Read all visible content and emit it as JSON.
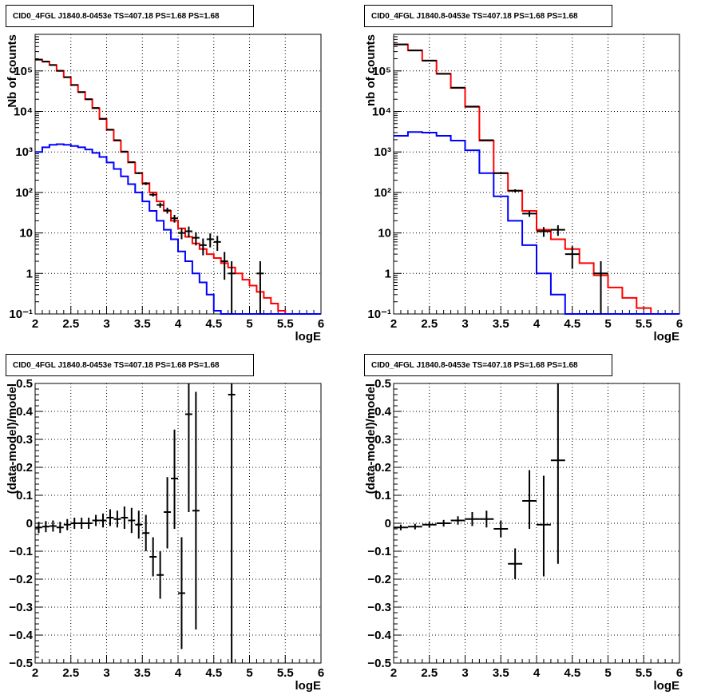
{
  "chart_data": [
    {
      "id": "p1",
      "type": "step",
      "title": "CID0_4FGL J1840.8-0453e TS=407.18 PS=1.68 PS=1.68",
      "xlabel": "logE",
      "ylabel": "Nb of counts",
      "xlim": [
        2,
        6
      ],
      "ylim": [
        0.1,
        800000
      ],
      "yscale": "log",
      "grid": true,
      "xticks": [
        "2",
        "2.5",
        "3",
        "3.5",
        "4",
        "4.5",
        "5",
        "5.5",
        "6"
      ],
      "yticks": [
        "10⁻¹",
        "1",
        "10",
        "10²",
        "10³",
        "10⁴",
        "10⁵"
      ],
      "series": [
        {
          "color": "#ff0000",
          "edges": [
            2.0,
            2.1,
            2.2,
            2.3,
            2.4,
            2.5,
            2.6,
            2.7,
            2.8,
            2.9,
            3.0,
            3.1,
            3.2,
            3.3,
            3.4,
            3.5,
            3.6,
            3.7,
            3.8,
            3.9,
            4.0,
            4.1,
            4.2,
            4.3,
            4.4,
            4.5,
            4.6,
            4.7,
            4.8,
            4.9,
            5.0,
            5.1,
            5.2,
            5.3,
            5.4,
            5.5,
            5.6,
            5.7,
            5.8,
            5.9,
            6.0
          ],
          "values": [
            190000,
            170000,
            140000,
            100000,
            70000,
            45000,
            30000,
            20000,
            12000,
            6500,
            3500,
            1900,
            1000,
            550,
            300,
            170,
            100,
            60,
            35,
            20,
            13,
            8,
            5.5,
            4,
            3,
            2.4,
            1.8,
            1.4,
            1.0,
            0.7,
            0.5,
            0.35,
            0.25,
            0.18,
            0.12,
            0.1,
            0.1,
            0.1,
            0.1,
            0.1
          ]
        },
        {
          "color": "#0000ff",
          "edges": [
            2.0,
            2.1,
            2.2,
            2.3,
            2.4,
            2.5,
            2.6,
            2.7,
            2.8,
            2.9,
            3.0,
            3.1,
            3.2,
            3.3,
            3.4,
            3.5,
            3.6,
            3.7,
            3.8,
            3.9,
            4.0,
            4.1,
            4.2,
            4.3,
            4.4,
            4.5,
            4.6,
            4.7,
            4.8,
            4.9,
            5.0,
            5.1,
            5.2,
            5.3,
            5.4,
            5.5,
            5.6,
            5.7,
            5.8,
            5.9,
            6.0
          ],
          "values": [
            1000,
            1300,
            1500,
            1550,
            1500,
            1400,
            1300,
            1150,
            950,
            750,
            550,
            380,
            250,
            160,
            100,
            60,
            35,
            20,
            12,
            7,
            3.5,
            2,
            1,
            0.6,
            0.3,
            0.12,
            0.1,
            0.1,
            0.1,
            0.1,
            0.1,
            0.1,
            0.1,
            0.1,
            0.1,
            0.1,
            0.1,
            0.1,
            0.1,
            0.1
          ]
        }
      ],
      "points": [
        {
          "x": 2.05,
          "y": 190000,
          "ylo": 189000,
          "yhi": 191000,
          "xerr": 0.05
        },
        {
          "x": 2.15,
          "y": 170000,
          "ylo": 169000,
          "yhi": 171000,
          "xerr": 0.05
        },
        {
          "x": 2.25,
          "y": 140000,
          "ylo": 139000,
          "yhi": 141000,
          "xerr": 0.05
        },
        {
          "x": 2.35,
          "y": 101000,
          "ylo": 100000,
          "yhi": 102000,
          "xerr": 0.05
        },
        {
          "x": 2.45,
          "y": 70000,
          "ylo": 69500,
          "yhi": 70500,
          "xerr": 0.05
        },
        {
          "x": 2.55,
          "y": 45000,
          "ylo": 44700,
          "yhi": 45300,
          "xerr": 0.05
        },
        {
          "x": 2.65,
          "y": 30000,
          "ylo": 29800,
          "yhi": 30200,
          "xerr": 0.05
        },
        {
          "x": 2.75,
          "y": 20000,
          "ylo": 19800,
          "yhi": 20200,
          "xerr": 0.05
        },
        {
          "x": 2.85,
          "y": 12200,
          "ylo": 12000,
          "yhi": 12400,
          "xerr": 0.05
        },
        {
          "x": 2.95,
          "y": 6600,
          "ylo": 6500,
          "yhi": 6700,
          "xerr": 0.05
        },
        {
          "x": 3.05,
          "y": 3550,
          "ylo": 3490,
          "yhi": 3610,
          "xerr": 0.05
        },
        {
          "x": 3.15,
          "y": 1950,
          "ylo": 1900,
          "yhi": 2000,
          "xerr": 0.05
        },
        {
          "x": 3.25,
          "y": 1020,
          "ylo": 990,
          "yhi": 1050,
          "xerr": 0.05
        },
        {
          "x": 3.35,
          "y": 560,
          "ylo": 536,
          "yhi": 584,
          "xerr": 0.05
        },
        {
          "x": 3.45,
          "y": 300,
          "ylo": 283,
          "yhi": 317,
          "xerr": 0.05
        },
        {
          "x": 3.55,
          "y": 165,
          "ylo": 152,
          "yhi": 178,
          "xerr": 0.05
        },
        {
          "x": 3.65,
          "y": 88,
          "ylo": 79,
          "yhi": 97,
          "xerr": 0.05
        },
        {
          "x": 3.75,
          "y": 49,
          "ylo": 42,
          "yhi": 56,
          "xerr": 0.05
        },
        {
          "x": 3.85,
          "y": 36,
          "ylo": 30,
          "yhi": 42,
          "xerr": 0.05
        },
        {
          "x": 3.95,
          "y": 23,
          "ylo": 18,
          "yhi": 28,
          "xerr": 0.05
        },
        {
          "x": 4.05,
          "y": 10,
          "ylo": 7,
          "yhi": 13,
          "xerr": 0.05
        },
        {
          "x": 4.15,
          "y": 11,
          "ylo": 7.8,
          "yhi": 14.4,
          "xerr": 0.05
        },
        {
          "x": 4.25,
          "y": 7.6,
          "ylo": 4.9,
          "yhi": 10.4,
          "xerr": 0.05
        },
        {
          "x": 4.35,
          "y": 5,
          "ylo": 2.8,
          "yhi": 7.3,
          "xerr": 0.05
        },
        {
          "x": 4.45,
          "y": 7,
          "ylo": 4.4,
          "yhi": 9.7,
          "xerr": 0.05
        },
        {
          "x": 4.55,
          "y": 6,
          "ylo": 3.6,
          "yhi": 8.5,
          "xerr": 0.05
        },
        {
          "x": 4.65,
          "y": 2,
          "ylo": 0.7,
          "yhi": 3.4,
          "xerr": 0.05
        },
        {
          "x": 4.75,
          "y": 1,
          "ylo": 0.1,
          "yhi": 2,
          "xerr": 0.05
        },
        {
          "x": 5.15,
          "y": 1,
          "ylo": 0.1,
          "yhi": 2,
          "xerr": 0.05
        }
      ]
    },
    {
      "id": "p2",
      "type": "step",
      "title": "CID0_4FGL J1840.8-0453e TS=407.18 PS=1.68 PS=1.68",
      "xlabel": "logE",
      "ylabel": "nb of counts",
      "xlim": [
        2,
        6
      ],
      "ylim": [
        0.1,
        800000
      ],
      "yscale": "log",
      "grid": true,
      "xticks": [
        "2",
        "2.5",
        "3",
        "3.5",
        "4",
        "4.5",
        "5",
        "5.5",
        "6"
      ],
      "yticks": [
        "10⁻¹",
        "1",
        "10",
        "10²",
        "10³",
        "10⁴",
        "10⁵"
      ],
      "series": [
        {
          "color": "#ff0000",
          "edges": [
            2.0,
            2.2,
            2.4,
            2.6,
            2.8,
            3.0,
            3.2,
            3.4,
            3.6,
            3.8,
            4.0,
            4.2,
            4.4,
            4.6,
            4.8,
            5.0,
            5.2,
            5.4,
            5.6,
            5.8,
            6.0
          ],
          "values": [
            450000,
            320000,
            180000,
            85000,
            38000,
            13000,
            1900,
            300,
            110,
            35,
            12,
            7,
            4,
            1.8,
            0.9,
            0.45,
            0.25,
            0.14,
            0.1,
            0.1
          ]
        },
        {
          "color": "#0000ff",
          "edges": [
            2.0,
            2.2,
            2.4,
            2.6,
            2.8,
            3.0,
            3.2,
            3.4,
            3.6,
            3.8,
            4.0,
            4.2,
            4.4,
            4.6,
            4.8,
            5.0,
            5.2,
            5.4,
            5.6,
            5.8,
            6.0
          ],
          "values": [
            2500,
            3100,
            3000,
            2500,
            1900,
            1100,
            300,
            80,
            20,
            5,
            1,
            0.3,
            0.1,
            0.1,
            0.1,
            0.1,
            0.1,
            0.1,
            0.1,
            0.1
          ]
        }
      ],
      "points": [
        {
          "x": 2.1,
          "y": 450000,
          "ylo": 449000,
          "yhi": 451000,
          "xerr": 0.1
        },
        {
          "x": 2.3,
          "y": 320000,
          "ylo": 319000,
          "yhi": 321000,
          "xerr": 0.1
        },
        {
          "x": 2.5,
          "y": 180000,
          "ylo": 179000,
          "yhi": 181000,
          "xerr": 0.1
        },
        {
          "x": 2.7,
          "y": 85000,
          "ylo": 84500,
          "yhi": 85500,
          "xerr": 0.1
        },
        {
          "x": 2.9,
          "y": 38500,
          "ylo": 38200,
          "yhi": 38800,
          "xerr": 0.1
        },
        {
          "x": 3.1,
          "y": 13200,
          "ylo": 13000,
          "yhi": 13400,
          "xerr": 0.1
        },
        {
          "x": 3.3,
          "y": 1950,
          "ylo": 1900,
          "yhi": 2000,
          "xerr": 0.1
        },
        {
          "x": 3.5,
          "y": 300,
          "ylo": 283,
          "yhi": 317,
          "xerr": 0.1
        },
        {
          "x": 3.7,
          "y": 110,
          "ylo": 100,
          "yhi": 120,
          "xerr": 0.1
        },
        {
          "x": 3.9,
          "y": 30,
          "ylo": 25,
          "yhi": 35,
          "xerr": 0.1
        },
        {
          "x": 4.1,
          "y": 11,
          "ylo": 8,
          "yhi": 14,
          "xerr": 0.1
        },
        {
          "x": 4.3,
          "y": 12,
          "ylo": 8.5,
          "yhi": 15.5,
          "xerr": 0.1
        },
        {
          "x": 4.5,
          "y": 3,
          "ylo": 1.3,
          "yhi": 4.7,
          "xerr": 0.1
        },
        {
          "x": 4.9,
          "y": 1,
          "ylo": 0.1,
          "yhi": 2,
          "xerr": 0.1
        }
      ]
    },
    {
      "id": "p3",
      "type": "scatter",
      "title": "CID0_4FGL J1840.8-0453e TS=407.18 PS=1.68 PS=1.68",
      "xlabel": "logE",
      "ylabel": "(data-model)/model",
      "xlim": [
        2,
        6
      ],
      "ylim": [
        -0.5,
        0.5
      ],
      "yscale": "linear",
      "grid": true,
      "xticks": [
        "2",
        "2.5",
        "3",
        "3.5",
        "4",
        "4.5",
        "5",
        "5.5",
        "6"
      ],
      "yticks": [
        "−0.5",
        "−0.4",
        "−0.3",
        "−0.2",
        "−0.1",
        "0",
        "0.1",
        "0.2",
        "0.3",
        "0.4",
        "0.5"
      ],
      "series": [],
      "points": [
        {
          "x": 2.05,
          "y": -0.015,
          "ylo": -0.035,
          "yhi": 0.005,
          "xerr": 0.05
        },
        {
          "x": 2.15,
          "y": -0.012,
          "ylo": -0.032,
          "yhi": 0.008,
          "xerr": 0.05
        },
        {
          "x": 2.25,
          "y": -0.01,
          "ylo": -0.03,
          "yhi": 0.01,
          "xerr": 0.05
        },
        {
          "x": 2.35,
          "y": -0.015,
          "ylo": -0.035,
          "yhi": 0.005,
          "xerr": 0.05
        },
        {
          "x": 2.45,
          "y": -0.005,
          "ylo": -0.025,
          "yhi": 0.015,
          "xerr": 0.05
        },
        {
          "x": 2.55,
          "y": 0,
          "ylo": -0.02,
          "yhi": 0.02,
          "xerr": 0.05
        },
        {
          "x": 2.65,
          "y": 0,
          "ylo": -0.02,
          "yhi": 0.02,
          "xerr": 0.05
        },
        {
          "x": 2.75,
          "y": 0,
          "ylo": -0.02,
          "yhi": 0.02,
          "xerr": 0.05
        },
        {
          "x": 2.85,
          "y": 0.01,
          "ylo": -0.01,
          "yhi": 0.03,
          "xerr": 0.05
        },
        {
          "x": 2.95,
          "y": 0.01,
          "ylo": -0.015,
          "yhi": 0.035,
          "xerr": 0.05
        },
        {
          "x": 3.05,
          "y": 0.02,
          "ylo": -0.01,
          "yhi": 0.05,
          "xerr": 0.05
        },
        {
          "x": 3.15,
          "y": 0.015,
          "ylo": -0.015,
          "yhi": 0.045,
          "xerr": 0.05
        },
        {
          "x": 3.25,
          "y": 0.02,
          "ylo": -0.02,
          "yhi": 0.06,
          "xerr": 0.05
        },
        {
          "x": 3.35,
          "y": 0.01,
          "ylo": -0.035,
          "yhi": 0.055,
          "xerr": 0.05
        },
        {
          "x": 3.45,
          "y": -0.005,
          "ylo": -0.055,
          "yhi": 0.045,
          "xerr": 0.05
        },
        {
          "x": 3.55,
          "y": -0.035,
          "ylo": -0.1,
          "yhi": 0.03,
          "xerr": 0.05
        },
        {
          "x": 3.65,
          "y": -0.12,
          "ylo": -0.19,
          "yhi": -0.05,
          "xerr": 0.05
        },
        {
          "x": 3.75,
          "y": -0.185,
          "ylo": -0.27,
          "yhi": -0.1,
          "xerr": 0.05
        },
        {
          "x": 3.85,
          "y": 0.04,
          "ylo": -0.09,
          "yhi": 0.165,
          "xerr": 0.05
        },
        {
          "x": 3.95,
          "y": 0.16,
          "ylo": -0.02,
          "yhi": 0.335,
          "xerr": 0.05
        },
        {
          "x": 4.05,
          "y": -0.25,
          "ylo": -0.45,
          "yhi": -0.05,
          "xerr": 0.05
        },
        {
          "x": 4.15,
          "y": 0.39,
          "ylo": 0.04,
          "yhi": 0.5,
          "xerr": 0.05
        },
        {
          "x": 4.25,
          "y": 0.045,
          "ylo": -0.38,
          "yhi": 0.47,
          "xerr": 0.05
        },
        {
          "x": 4.75,
          "y": 0.46,
          "ylo": -0.5,
          "yhi": 0.5,
          "xerr": 0.05
        }
      ]
    },
    {
      "id": "p4",
      "type": "scatter",
      "title": "CID0_4FGL J1840.8-0453e TS=407.18 PS=1.68 PS=1.68",
      "xlabel": "logE",
      "ylabel": "(data-model)/model",
      "xlim": [
        2,
        6
      ],
      "ylim": [
        -0.5,
        0.5
      ],
      "yscale": "linear",
      "grid": true,
      "xticks": [
        "2",
        "2.5",
        "3",
        "3.5",
        "4",
        "4.5",
        "5",
        "5.5",
        "6"
      ],
      "yticks": [
        "−0.5",
        "−0.4",
        "−0.3",
        "−0.2",
        "−0.1",
        "0",
        "0.1",
        "0.2",
        "0.3",
        "0.4",
        "0.5"
      ],
      "series": [],
      "points": [
        {
          "x": 2.1,
          "y": -0.015,
          "ylo": -0.025,
          "yhi": -0.005,
          "xerr": 0.1
        },
        {
          "x": 2.3,
          "y": -0.012,
          "ylo": -0.022,
          "yhi": -0.002,
          "xerr": 0.1
        },
        {
          "x": 2.5,
          "y": -0.005,
          "ylo": -0.015,
          "yhi": 0.005,
          "xerr": 0.1
        },
        {
          "x": 2.7,
          "y": 0,
          "ylo": -0.012,
          "yhi": 0.012,
          "xerr": 0.1
        },
        {
          "x": 2.9,
          "y": 0.01,
          "ylo": -0.005,
          "yhi": 0.025,
          "xerr": 0.1
        },
        {
          "x": 3.1,
          "y": 0.015,
          "ylo": -0.01,
          "yhi": 0.04,
          "xerr": 0.1
        },
        {
          "x": 3.3,
          "y": 0.015,
          "ylo": -0.015,
          "yhi": 0.045,
          "xerr": 0.1
        },
        {
          "x": 3.5,
          "y": -0.02,
          "ylo": -0.05,
          "yhi": 0.01,
          "xerr": 0.1
        },
        {
          "x": 3.7,
          "y": -0.145,
          "ylo": -0.2,
          "yhi": -0.09,
          "xerr": 0.1
        },
        {
          "x": 3.9,
          "y": 0.08,
          "ylo": -0.02,
          "yhi": 0.19,
          "xerr": 0.1
        },
        {
          "x": 4.1,
          "y": -0.005,
          "ylo": -0.19,
          "yhi": 0.17,
          "xerr": 0.1
        },
        {
          "x": 4.3,
          "y": 0.225,
          "ylo": -0.145,
          "yhi": 0.5,
          "xerr": 0.1
        }
      ]
    }
  ]
}
